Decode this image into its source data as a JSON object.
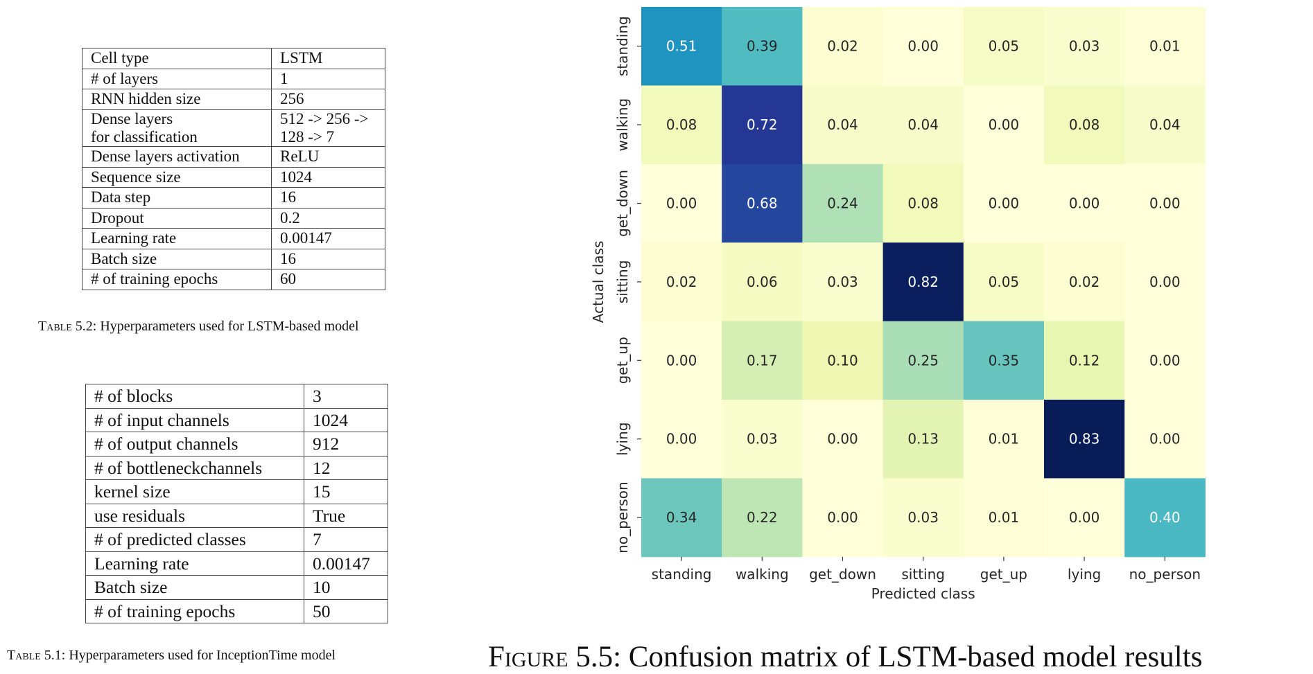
{
  "table_lstm": {
    "rows": [
      {
        "key": "Cell type",
        "value": "LSTM"
      },
      {
        "key": "# of layers",
        "value": "1"
      },
      {
        "key": "RNN hidden size",
        "value": "256"
      },
      {
        "key": "Dense layers\nfor classification",
        "value": "512 -> 256 ->\n128 -> 7"
      },
      {
        "key": "Dense layers activation",
        "value": "ReLU"
      },
      {
        "key": "Sequence size",
        "value": "1024"
      },
      {
        "key": "Data step",
        "value": "16"
      },
      {
        "key": "Dropout",
        "value": "0.2"
      },
      {
        "key": "Learning rate",
        "value": "0.00147"
      },
      {
        "key": "Batch size",
        "value": "16"
      },
      {
        "key": "# of training epochs",
        "value": "60"
      }
    ],
    "caption_label": "Table 5.2:",
    "caption_text": " Hyperparameters used for LSTM-based model"
  },
  "table_inception": {
    "rows": [
      {
        "key": "# of blocks",
        "value": "3"
      },
      {
        "key": "# of input channels",
        "value": "1024"
      },
      {
        "key": "# of output channels",
        "value": "912"
      },
      {
        "key": "# of bottleneckchannels",
        "value": "12"
      },
      {
        "key": "kernel size",
        "value": "15"
      },
      {
        "key": "use residuals",
        "value": "True"
      },
      {
        "key": "# of predicted classes",
        "value": "7"
      },
      {
        "key": "Learning rate",
        "value": "0.00147"
      },
      {
        "key": "Batch size",
        "value": "10"
      },
      {
        "key": "# of training epochs",
        "value": "50"
      }
    ],
    "caption_label": "Table 5.1:",
    "caption_text": " Hyperparameters used for InceptionTime model"
  },
  "figure": {
    "caption_label": "Figure 5.5:",
    "caption_text": " Confusion matrix of LSTM-based model results"
  },
  "chart_data": {
    "type": "heatmap",
    "colormap": "YlGnBu",
    "xlabel": "Predicted class",
    "ylabel": "Actual class",
    "x_categories": [
      "standing",
      "walking",
      "get_down",
      "sitting",
      "get_up",
      "lying",
      "no_person"
    ],
    "y_categories": [
      "standing",
      "walking",
      "get_down",
      "sitting",
      "get_up",
      "lying",
      "no_person"
    ],
    "values": [
      [
        0.51,
        0.39,
        0.02,
        0.0,
        0.05,
        0.03,
        0.01
      ],
      [
        0.08,
        0.72,
        0.04,
        0.04,
        0.0,
        0.08,
        0.04
      ],
      [
        0.0,
        0.68,
        0.24,
        0.08,
        0.0,
        0.0,
        0.0
      ],
      [
        0.02,
        0.06,
        0.03,
        0.82,
        0.05,
        0.02,
        0.0
      ],
      [
        0.0,
        0.17,
        0.1,
        0.25,
        0.35,
        0.12,
        0.0
      ],
      [
        0.0,
        0.03,
        0.0,
        0.13,
        0.01,
        0.83,
        0.0
      ],
      [
        0.34,
        0.22,
        0.0,
        0.03,
        0.01,
        0.0,
        0.4
      ]
    ],
    "vmin": 0.0,
    "vmax": 0.83,
    "colorbar": false
  }
}
